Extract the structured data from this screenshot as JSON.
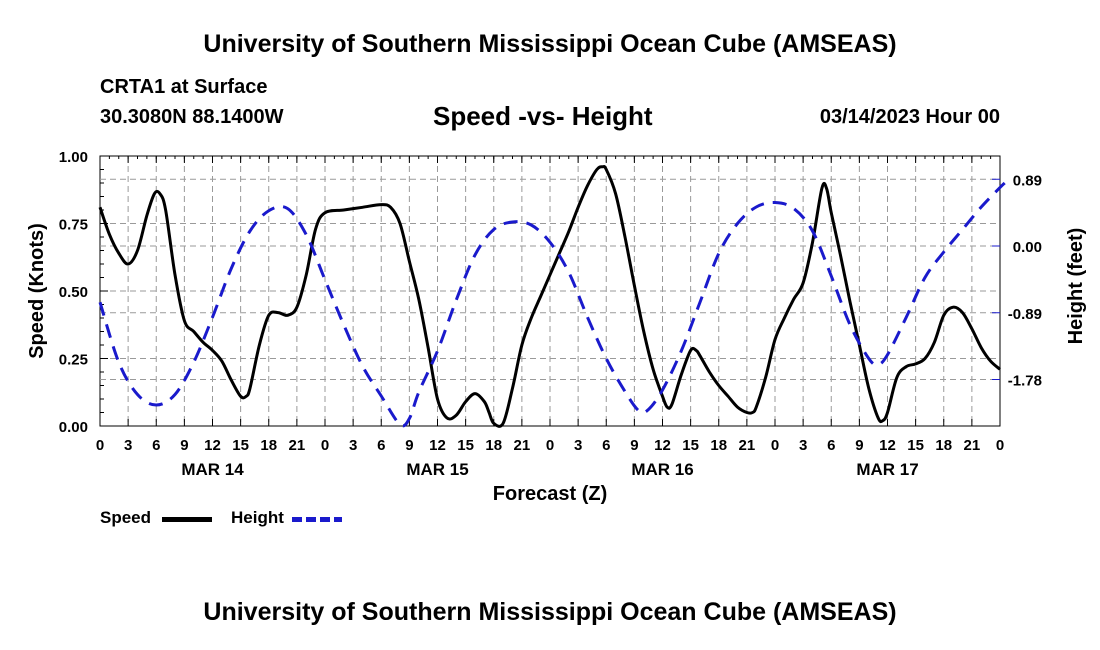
{
  "header": {
    "title": "University of Southern Mississippi Ocean Cube (AMSEAS)",
    "station": "CRTA1 at Surface",
    "coords": "30.3080N  88.1400W",
    "subtitle": "Speed -vs- Height",
    "date": "03/14/2023 Hour 00"
  },
  "footer": {
    "title": "University of Southern Mississippi Ocean Cube (AMSEAS)"
  },
  "colors": {
    "speed": "#000000",
    "height": "#1a1acc",
    "grid": "#9a9a9a"
  },
  "chart_data": {
    "type": "line",
    "xlabel": "Forecast (Z)",
    "ylabel_left": "Speed (Knots)",
    "ylabel_right": "Height (feet)",
    "x_hours_range": [
      0,
      96
    ],
    "x_tick_labels": [
      "0",
      "3",
      "6",
      "9",
      "12",
      "15",
      "18",
      "21",
      "0",
      "3",
      "6",
      "9",
      "12",
      "15",
      "18",
      "21",
      "0",
      "3",
      "6",
      "9",
      "12",
      "15",
      "18",
      "21",
      "0",
      "3",
      "6",
      "9",
      "12",
      "15",
      "18",
      "21",
      "0"
    ],
    "day_labels": [
      {
        "label": "MAR 14",
        "hour": 12
      },
      {
        "label": "MAR 15",
        "hour": 36
      },
      {
        "label": "MAR 16",
        "hour": 60
      },
      {
        "label": "MAR 17",
        "hour": 84
      }
    ],
    "ylim_left": [
      0,
      1.0
    ],
    "yticks_left": [
      "0.00",
      "0.25",
      "0.50",
      "0.75",
      "1.00"
    ],
    "ylim_right": [
      -2.4,
      1.2
    ],
    "yticks_right": [
      {
        "value": 0.89,
        "label": "0.89"
      },
      {
        "value": 0.0,
        "label": "0.00"
      },
      {
        "value": -0.89,
        "label": "-0.89"
      },
      {
        "value": -1.78,
        "label": "-1.78"
      }
    ],
    "grid": true,
    "legend": "bottom-left",
    "series": [
      {
        "name": "Speed",
        "axis": "left",
        "style": "solid",
        "points": [
          [
            0,
            0.81
          ],
          [
            1,
            0.71
          ],
          [
            2,
            0.64
          ],
          [
            3,
            0.6
          ],
          [
            4,
            0.65
          ],
          [
            5,
            0.78
          ],
          [
            5.8,
            0.86
          ],
          [
            6.4,
            0.86
          ],
          [
            7,
            0.8
          ],
          [
            8,
            0.56
          ],
          [
            9,
            0.39
          ],
          [
            10,
            0.35
          ],
          [
            11,
            0.31
          ],
          [
            12,
            0.28
          ],
          [
            13,
            0.24
          ],
          [
            14,
            0.17
          ],
          [
            15,
            0.11
          ],
          [
            15.6,
            0.11
          ],
          [
            16,
            0.14
          ],
          [
            17,
            0.3
          ],
          [
            18,
            0.41
          ],
          [
            19,
            0.42
          ],
          [
            20,
            0.41
          ],
          [
            21,
            0.44
          ],
          [
            22,
            0.56
          ],
          [
            23,
            0.73
          ],
          [
            24,
            0.79
          ],
          [
            26,
            0.8
          ],
          [
            28,
            0.81
          ],
          [
            30,
            0.82
          ],
          [
            31,
            0.81
          ],
          [
            32,
            0.75
          ],
          [
            33,
            0.61
          ],
          [
            34,
            0.47
          ],
          [
            35,
            0.29
          ],
          [
            36,
            0.1
          ],
          [
            37,
            0.03
          ],
          [
            38,
            0.04
          ],
          [
            39,
            0.09
          ],
          [
            40,
            0.12
          ],
          [
            41,
            0.09
          ],
          [
            41.5,
            0.05
          ],
          [
            42,
            0.01
          ],
          [
            43,
            0.01
          ],
          [
            44,
            0.14
          ],
          [
            45,
            0.3
          ],
          [
            46,
            0.4
          ],
          [
            47,
            0.48
          ],
          [
            48,
            0.56
          ],
          [
            49,
            0.64
          ],
          [
            50,
            0.72
          ],
          [
            51,
            0.81
          ],
          [
            52,
            0.89
          ],
          [
            53,
            0.95
          ],
          [
            53.6,
            0.96
          ],
          [
            54,
            0.95
          ],
          [
            55,
            0.86
          ],
          [
            56,
            0.7
          ],
          [
            57,
            0.52
          ],
          [
            58,
            0.35
          ],
          [
            59,
            0.21
          ],
          [
            60,
            0.11
          ],
          [
            60.5,
            0.07
          ],
          [
            61,
            0.08
          ],
          [
            62,
            0.19
          ],
          [
            63,
            0.28
          ],
          [
            63.6,
            0.28
          ],
          [
            64,
            0.26
          ],
          [
            65,
            0.2
          ],
          [
            66,
            0.15
          ],
          [
            67,
            0.11
          ],
          [
            68,
            0.07
          ],
          [
            69,
            0.05
          ],
          [
            69.6,
            0.05
          ],
          [
            70,
            0.07
          ],
          [
            71,
            0.18
          ],
          [
            72,
            0.32
          ],
          [
            73,
            0.4
          ],
          [
            74,
            0.47
          ],
          [
            75,
            0.53
          ],
          [
            76,
            0.68
          ],
          [
            77,
            0.88
          ],
          [
            77.5,
            0.88
          ],
          [
            78,
            0.79
          ],
          [
            79,
            0.63
          ],
          [
            80,
            0.46
          ],
          [
            81,
            0.3
          ],
          [
            82,
            0.14
          ],
          [
            83,
            0.03
          ],
          [
            83.5,
            0.02
          ],
          [
            84,
            0.05
          ],
          [
            85,
            0.18
          ],
          [
            86,
            0.22
          ],
          [
            87,
            0.23
          ],
          [
            88,
            0.25
          ],
          [
            89,
            0.31
          ],
          [
            90,
            0.41
          ],
          [
            91,
            0.44
          ],
          [
            92,
            0.42
          ],
          [
            93,
            0.36
          ],
          [
            94,
            0.29
          ],
          [
            95,
            0.24
          ],
          [
            96,
            0.21
          ]
        ]
      },
      {
        "name": "Height",
        "axis": "right",
        "style": "dashed",
        "points": [
          [
            0,
            -0.75
          ],
          [
            2,
            -1.55
          ],
          [
            4,
            -1.98
          ],
          [
            6,
            -2.12
          ],
          [
            8,
            -1.98
          ],
          [
            10,
            -1.55
          ],
          [
            12,
            -0.95
          ],
          [
            14,
            -0.3
          ],
          [
            16,
            0.2
          ],
          [
            18,
            0.47
          ],
          [
            20,
            0.5
          ],
          [
            22,
            0.15
          ],
          [
            24,
            -0.45
          ],
          [
            26,
            -1.05
          ],
          [
            28,
            -1.6
          ],
          [
            30,
            -2.0
          ],
          [
            32,
            -2.38
          ],
          [
            33,
            -2.3
          ],
          [
            34,
            -1.95
          ],
          [
            36,
            -1.4
          ],
          [
            38,
            -0.72
          ],
          [
            40,
            -0.12
          ],
          [
            42,
            0.22
          ],
          [
            44,
            0.32
          ],
          [
            46,
            0.28
          ],
          [
            48,
            0.05
          ],
          [
            50,
            -0.35
          ],
          [
            52,
            -0.95
          ],
          [
            54,
            -1.5
          ],
          [
            56,
            -1.94
          ],
          [
            57.5,
            -2.2
          ],
          [
            58.5,
            -2.18
          ],
          [
            60,
            -1.92
          ],
          [
            62,
            -1.4
          ],
          [
            64,
            -0.75
          ],
          [
            66,
            -0.1
          ],
          [
            68,
            0.3
          ],
          [
            70,
            0.52
          ],
          [
            72,
            0.58
          ],
          [
            74,
            0.5
          ],
          [
            76,
            0.2
          ],
          [
            78,
            -0.4
          ],
          [
            80,
            -1.05
          ],
          [
            82,
            -1.5
          ],
          [
            83,
            -1.58
          ],
          [
            84,
            -1.45
          ],
          [
            86,
            -0.95
          ],
          [
            88,
            -0.42
          ],
          [
            90,
            -0.08
          ],
          [
            92,
            0.22
          ],
          [
            94,
            0.52
          ],
          [
            96,
            0.78
          ],
          [
            96.5,
            0.84
          ]
        ]
      }
    ]
  }
}
